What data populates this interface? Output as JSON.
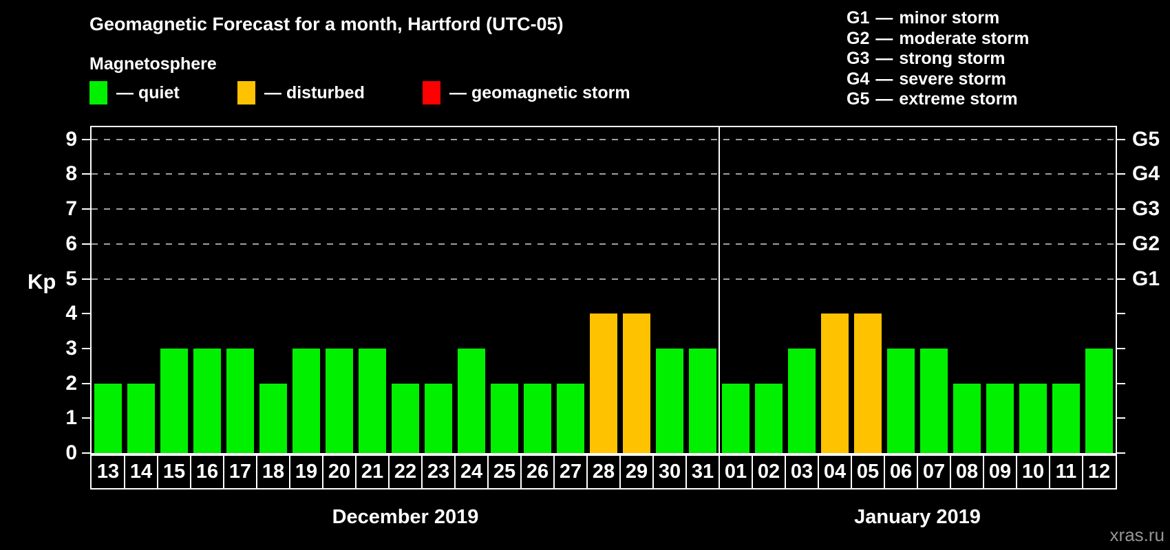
{
  "title": "Geomagnetic Forecast for a month, Hartford (UTC-05)",
  "legend": {
    "heading": "Magnetosphere",
    "dash": "—",
    "items": [
      {
        "key": "quiet",
        "label": "quiet",
        "color": "#00f000"
      },
      {
        "key": "disturbed",
        "label": "disturbed",
        "color": "#ffc200"
      },
      {
        "key": "storm",
        "label": "geomagnetic storm",
        "color": "#ff0000"
      }
    ]
  },
  "g_legend": {
    "dash": "—",
    "items": [
      {
        "code": "G1",
        "desc": "minor storm"
      },
      {
        "code": "G2",
        "desc": "moderate storm"
      },
      {
        "code": "G3",
        "desc": "strong storm"
      },
      {
        "code": "G4",
        "desc": "severe storm"
      },
      {
        "code": "G5",
        "desc": "extreme storm"
      }
    ]
  },
  "axes": {
    "y_label": "Kp",
    "y_ticks": [
      0,
      1,
      2,
      3,
      4,
      5,
      6,
      7,
      8,
      9
    ],
    "gridline_levels": [
      5,
      6,
      7,
      8,
      9
    ],
    "right_labels": [
      {
        "kp": 5,
        "label": "G1"
      },
      {
        "kp": 6,
        "label": "G2"
      },
      {
        "kp": 7,
        "label": "G3"
      },
      {
        "kp": 8,
        "label": "G4"
      },
      {
        "kp": 9,
        "label": "G5"
      }
    ]
  },
  "watermark": "xras.ru",
  "chart_data": {
    "type": "bar",
    "title": "Geomagnetic Forecast for a month, Hartford (UTC-05)",
    "ylabel": "Kp",
    "ylim": [
      0,
      9.35
    ],
    "grid": "dashed horizontal lines at Kp 5-9 (G1-G5)",
    "legend_position": "top-left",
    "month_split": 19,
    "months": [
      {
        "label": "December 2019",
        "days": [
          "13",
          "14",
          "15",
          "16",
          "17",
          "18",
          "19",
          "20",
          "21",
          "22",
          "23",
          "24",
          "25",
          "26",
          "27",
          "28",
          "29",
          "30",
          "31"
        ]
      },
      {
        "label": "January 2019",
        "days": [
          "01",
          "02",
          "03",
          "04",
          "05",
          "06",
          "07",
          "08",
          "09",
          "10",
          "11",
          "12"
        ]
      }
    ],
    "categories": [
      "13",
      "14",
      "15",
      "16",
      "17",
      "18",
      "19",
      "20",
      "21",
      "22",
      "23",
      "24",
      "25",
      "26",
      "27",
      "28",
      "29",
      "30",
      "31",
      "01",
      "02",
      "03",
      "04",
      "05",
      "06",
      "07",
      "08",
      "09",
      "10",
      "11",
      "12"
    ],
    "values": [
      2,
      2,
      3,
      3,
      3,
      2,
      3,
      3,
      3,
      2,
      2,
      3,
      2,
      2,
      2,
      4,
      4,
      3,
      3,
      2,
      2,
      3,
      4,
      4,
      3,
      3,
      2,
      2,
      2,
      2,
      3
    ],
    "statuses": [
      "quiet",
      "quiet",
      "quiet",
      "quiet",
      "quiet",
      "quiet",
      "quiet",
      "quiet",
      "quiet",
      "quiet",
      "quiet",
      "quiet",
      "quiet",
      "quiet",
      "quiet",
      "disturbed",
      "disturbed",
      "quiet",
      "quiet",
      "quiet",
      "quiet",
      "quiet",
      "disturbed",
      "disturbed",
      "quiet",
      "quiet",
      "quiet",
      "quiet",
      "quiet",
      "quiet",
      "quiet"
    ]
  }
}
